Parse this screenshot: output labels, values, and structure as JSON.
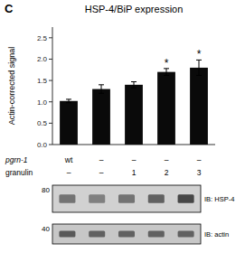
{
  "chart_data": {
    "type": "bar",
    "panel_label": "C",
    "title": "HSP-4/BiP expression",
    "ylabel": "Actin-corrected signal",
    "ylim": [
      0,
      2.75
    ],
    "yticks": [
      {
        "value": 0.0,
        "label": "0.0"
      },
      0.5,
      {
        "value": 1.0,
        "label": "1.0"
      },
      1.5,
      {
        "value": 2.0,
        "label": "2.0"
      },
      2.5
    ],
    "values": [
      1.02,
      1.3,
      1.4,
      1.7,
      1.8
    ],
    "errors": [
      0.04,
      0.1,
      0.07,
      0.08,
      0.18
    ],
    "color": "#0a0a0a",
    "significance": [
      null,
      null,
      null,
      "*",
      "*"
    ],
    "label_rows": [
      {
        "name": "pgrn-1",
        "labels": [
          "wt",
          "–",
          "–",
          "–",
          "–"
        ]
      },
      {
        "name": "granulin",
        "labels": [
          "–",
          "–",
          "1",
          "2",
          "3"
        ]
      }
    ],
    "blots": [
      {
        "label": "IB: HSP-4",
        "mw_label": "80",
        "band_grays": [
          0.45,
          0.5,
          0.45,
          0.38,
          0.28
        ],
        "background_gray": 0.82
      },
      {
        "label": "IB: actin",
        "mw_label": "40",
        "band_grays": [
          0.35,
          0.38,
          0.38,
          0.38,
          0.38
        ],
        "background_gray": 0.78
      }
    ]
  }
}
